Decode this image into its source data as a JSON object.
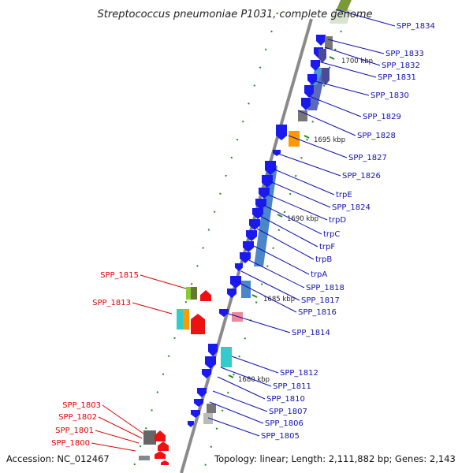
{
  "title": "Streptococcus pneumoniae P1031, complete genome",
  "footer": {
    "accession": "Accession: NC_012467",
    "summary": "Topology: linear; Length: 2,111,882 bp; Genes: 2,143"
  },
  "scale_marks": [
    "1700 kbp",
    "1695 kbp",
    "1690 kbp",
    "1685 kbp",
    "1680 kbp"
  ],
  "genes_forward": [
    "SPP_1834",
    "SPP_1833",
    "SPP_1832",
    "SPP_1831",
    "SPP_1830",
    "SPP_1829",
    "SPP_1828",
    "SPP_1827",
    "SPP_1826",
    "trpE",
    "SPP_1824",
    "trpD",
    "trpC",
    "trpF",
    "trpB",
    "trpA",
    "SPP_1818",
    "SPP_1817",
    "SPP_1816",
    "SPP_1814",
    "SPP_1812",
    "SPP_1811",
    "SPP_1810",
    "SPP_1807",
    "SPP_1806",
    "SPP_1805"
  ],
  "genes_reverse": [
    "SPP_1815",
    "SPP_1813",
    "SPP_1803",
    "SPP_1802",
    "SPP_1801",
    "SPP_1800"
  ],
  "colors": {
    "forward": "#1a1aee",
    "reverse": "#ee1111",
    "axis": "#8a8a8a",
    "tick": "#1e8a1e",
    "label_forward": "#1010b0",
    "label_reverse": "#e00000"
  }
}
